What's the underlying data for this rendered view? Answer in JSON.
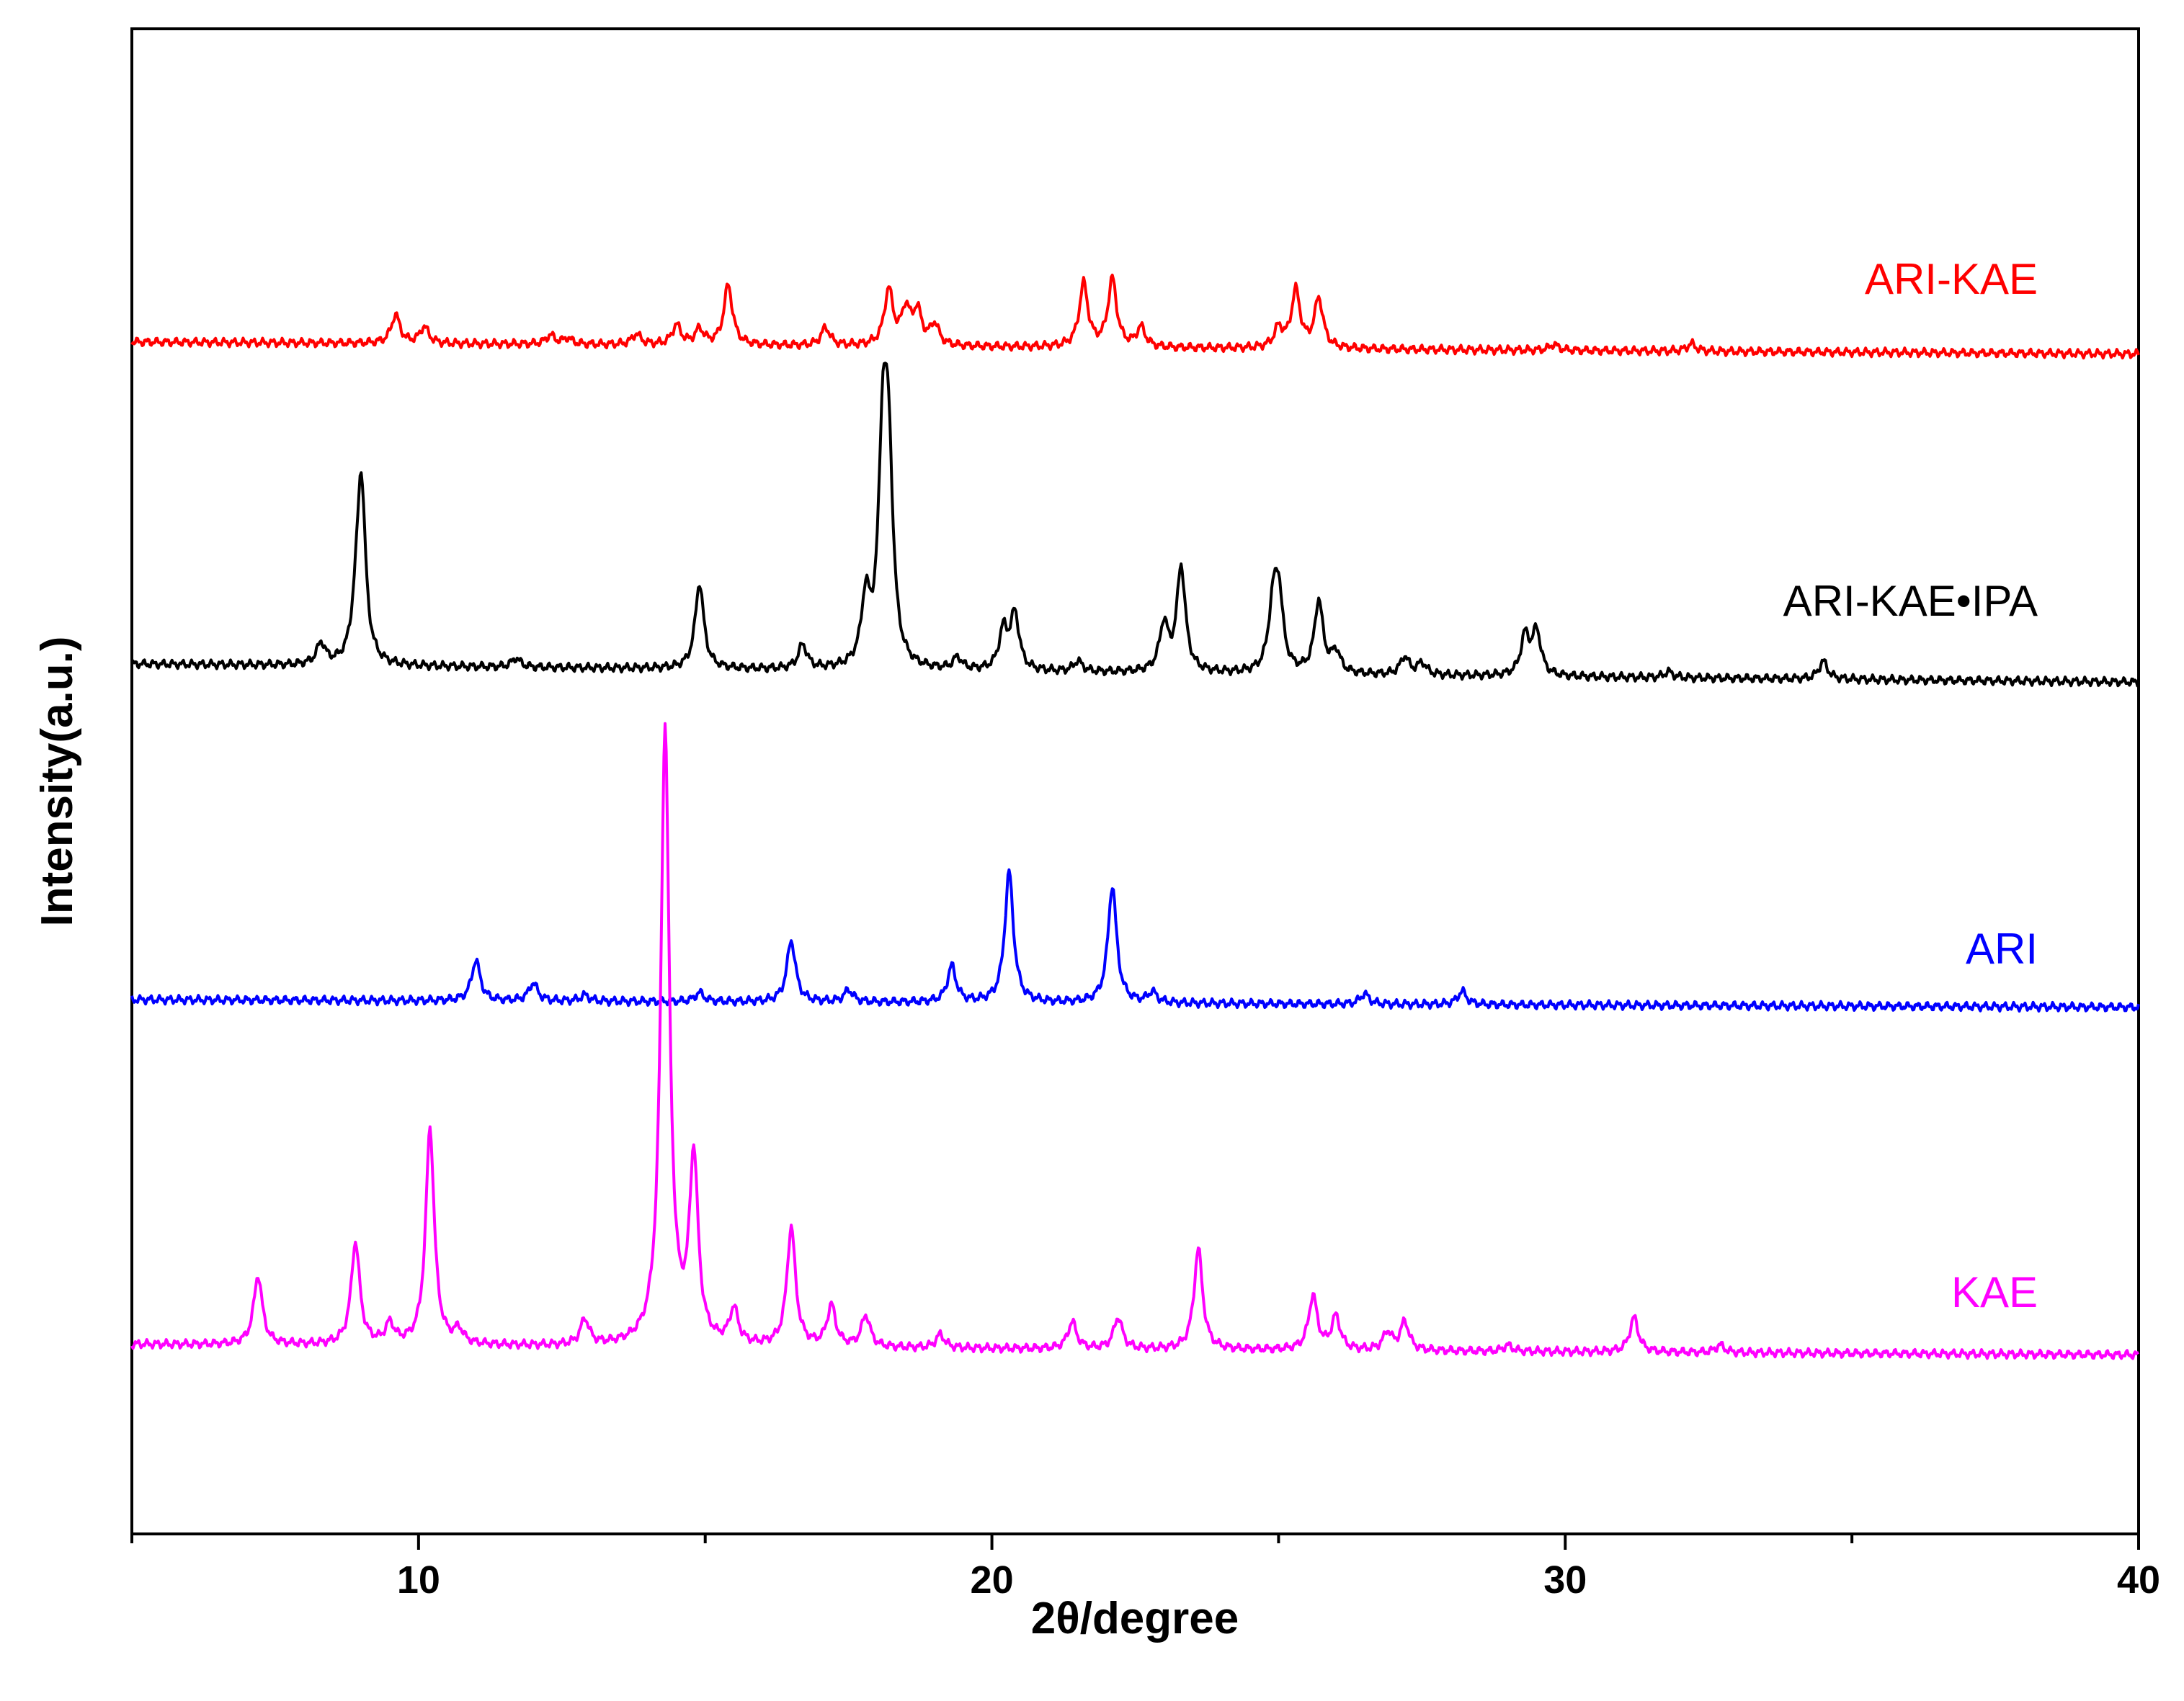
{
  "chart_data": {
    "type": "line",
    "xlabel": "2θ/degree",
    "ylabel": "Intensity(a.u.)",
    "xlim": [
      5,
      40
    ],
    "ylim": [
      0,
      100
    ],
    "x_ticks": [
      10,
      20,
      30,
      40
    ],
    "x_tick_labels": [
      "10",
      "20",
      "30",
      "40"
    ],
    "grid": false,
    "legend": "inline labels at right end of each trace",
    "series": [
      {
        "name": "ARI-KAE",
        "color": "#ff0000",
        "baseline": 79.2,
        "baseline_end": 78.4,
        "peaks": [
          [
            9.6,
            1.9
          ],
          [
            10.1,
            1.1
          ],
          [
            12.3,
            0.6
          ],
          [
            12.6,
            0.4
          ],
          [
            13.8,
            0.7
          ],
          [
            14.5,
            1.3
          ],
          [
            14.9,
            1.0
          ],
          [
            15.4,
            4.0
          ],
          [
            17.1,
            1.2
          ],
          [
            18.2,
            3.7
          ],
          [
            18.5,
            2.3
          ],
          [
            18.7,
            2.2
          ],
          [
            19.0,
            1.4
          ],
          [
            21.6,
            4.2
          ],
          [
            22.1,
            4.5
          ],
          [
            22.6,
            1.3
          ],
          [
            25.0,
            1.3
          ],
          [
            25.3,
            3.8
          ],
          [
            25.7,
            3.3
          ],
          [
            29.8,
            0.4
          ],
          [
            32.2,
            0.5
          ]
        ]
      },
      {
        "name": "ARI-KAE•IPA",
        "color": "#000000",
        "baseline": 57.8,
        "baseline_end": 56.6,
        "peaks": [
          [
            8.3,
            1.4
          ],
          [
            8.9,
            1.8
          ],
          [
            9.0,
            12.2
          ],
          [
            11.7,
            0.6
          ],
          [
            14.9,
            5.7
          ],
          [
            16.7,
            1.6
          ],
          [
            17.8,
            4.3
          ],
          [
            18.1,
            14.2
          ],
          [
            18.2,
            12.0
          ],
          [
            19.4,
            0.8
          ],
          [
            20.2,
            2.6
          ],
          [
            20.4,
            3.7
          ],
          [
            21.5,
            0.7
          ],
          [
            23.0,
            3.1
          ],
          [
            23.3,
            7.0
          ],
          [
            24.9,
            3.8
          ],
          [
            25.0,
            5.1
          ],
          [
            25.7,
            4.8
          ],
          [
            26.0,
            1.4
          ],
          [
            27.2,
            1.2
          ],
          [
            27.5,
            0.8
          ],
          [
            29.3,
            2.6
          ],
          [
            29.5,
            2.9
          ],
          [
            31.8,
            0.4
          ],
          [
            34.5,
            1.2
          ]
        ]
      },
      {
        "name": "ARI",
        "color": "#0000ff",
        "baseline": 35.5,
        "baseline_end": 35.0,
        "peaks": [
          [
            11.0,
            2.7
          ],
          [
            12.0,
            1.2
          ],
          [
            12.9,
            0.4
          ],
          [
            14.9,
            0.6
          ],
          [
            16.5,
            4.1
          ],
          [
            17.5,
            0.8
          ],
          [
            19.3,
            2.4
          ],
          [
            20.3,
            8.7
          ],
          [
            22.1,
            7.8
          ],
          [
            22.8,
            0.7
          ],
          [
            26.5,
            0.7
          ],
          [
            28.2,
            0.9
          ]
        ]
      },
      {
        "name": "KAE",
        "color": "#ff00ff",
        "baseline": 12.6,
        "baseline_end": 11.9,
        "peaks": [
          [
            7.2,
            4.6
          ],
          [
            8.9,
            6.8
          ],
          [
            9.5,
            1.3
          ],
          [
            10.2,
            14.4
          ],
          [
            10.7,
            0.9
          ],
          [
            12.9,
            1.7
          ],
          [
            14.3,
            41.0
          ],
          [
            14.8,
            12.2
          ],
          [
            15.5,
            2.3
          ],
          [
            16.5,
            7.9
          ],
          [
            17.2,
            2.7
          ],
          [
            17.8,
            2.1
          ],
          [
            19.1,
            0.9
          ],
          [
            21.4,
            1.8
          ],
          [
            22.2,
            2.1
          ],
          [
            23.6,
            6.7
          ],
          [
            25.6,
            3.6
          ],
          [
            26.0,
            2.2
          ],
          [
            26.9,
            1.2
          ],
          [
            27.2,
            1.9
          ],
          [
            29.0,
            0.4
          ],
          [
            31.2,
            2.3
          ],
          [
            32.7,
            0.5
          ]
        ]
      }
    ]
  }
}
